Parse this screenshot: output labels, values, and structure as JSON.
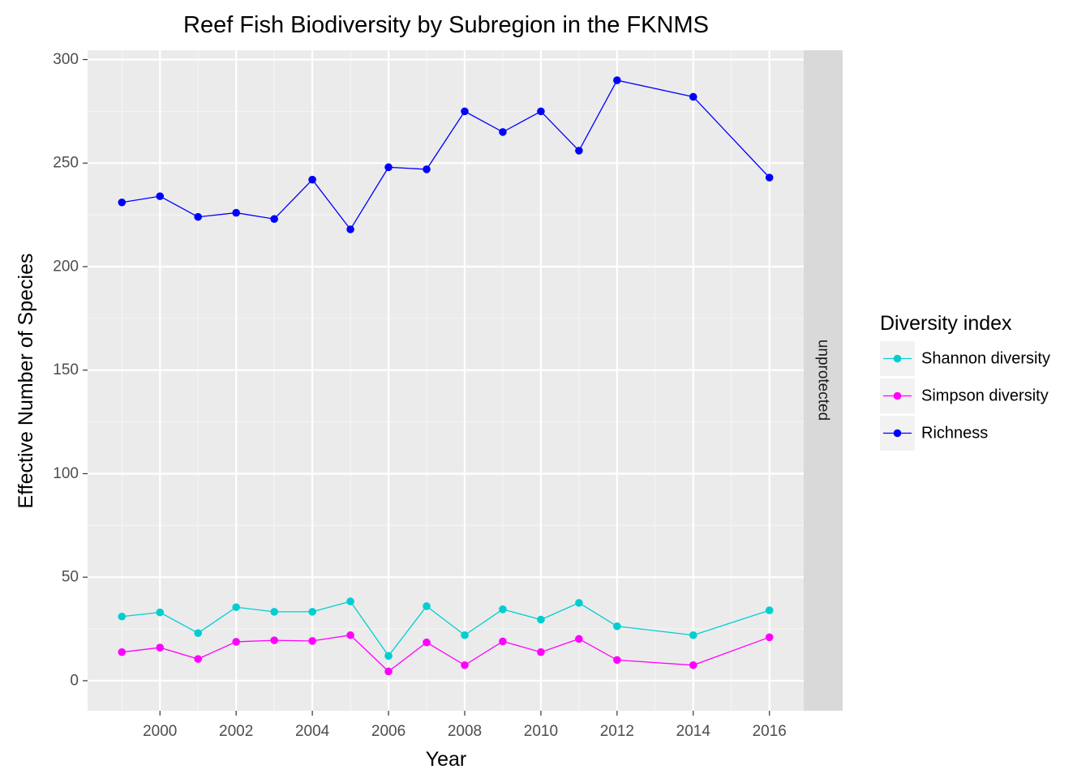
{
  "chart_data": {
    "type": "line",
    "title": "Reef Fish Biodiversity by Subregion in the FKNMS",
    "xlabel": "Year",
    "ylabel": "Effective Number of Species",
    "facet_label": "unprotected",
    "xlim": [
      1998.1,
      2016.9
    ],
    "ylim": [
      -14.5,
      304.5
    ],
    "x_ticks": [
      2000,
      2002,
      2004,
      2006,
      2008,
      2010,
      2012,
      2014,
      2016
    ],
    "y_ticks": [
      0,
      50,
      100,
      150,
      200,
      250,
      300
    ],
    "grid": true,
    "legend": {
      "title": "Diversity index",
      "position": "right"
    },
    "series": [
      {
        "name": "Shannon diversity",
        "color": "#00CED1",
        "x": [
          1999,
          2000,
          2001,
          2002,
          2003,
          2004,
          2005,
          2006,
          2007,
          2008,
          2009,
          2010,
          2011,
          2012,
          2014,
          2016
        ],
        "y": [
          31,
          33,
          23,
          35.5,
          33.3,
          33.3,
          38.3,
          12,
          36,
          22,
          34.5,
          29.5,
          37.6,
          26.3,
          22,
          34
        ]
      },
      {
        "name": "Simpson diversity",
        "color": "#FF00FF",
        "x": [
          1999,
          2000,
          2001,
          2002,
          2003,
          2004,
          2005,
          2006,
          2007,
          2008,
          2009,
          2010,
          2011,
          2012,
          2014,
          2016
        ],
        "y": [
          13.8,
          16,
          10.5,
          18.8,
          19.5,
          19.2,
          22,
          4.5,
          18.5,
          7.5,
          19,
          13.8,
          20.2,
          10,
          7.5,
          21
        ]
      },
      {
        "name": "Richness",
        "color": "#0000FF",
        "x": [
          1999,
          2000,
          2001,
          2002,
          2003,
          2004,
          2005,
          2006,
          2007,
          2008,
          2009,
          2010,
          2011,
          2012,
          2014,
          2016
        ],
        "y": [
          231,
          234,
          224,
          226,
          223,
          242,
          218,
          248,
          247,
          275,
          265,
          275,
          256,
          290,
          282,
          243
        ]
      }
    ]
  }
}
